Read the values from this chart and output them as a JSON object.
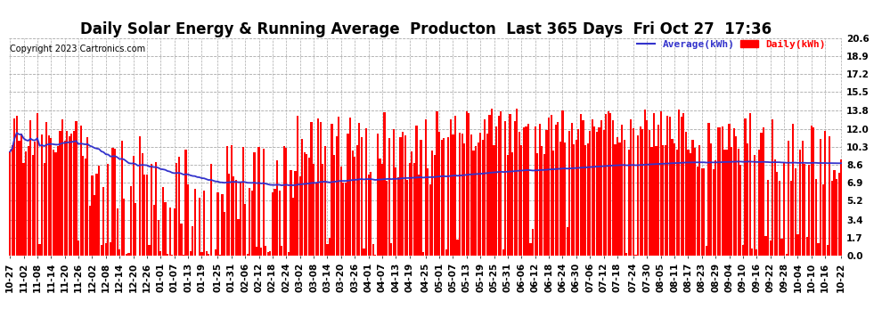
{
  "title": "Daily Solar Energy & Running Average  Producton  Last 365 Days  Fri Oct 27  17:36",
  "copyright_text": "Copyright 2023 Cartronics.com",
  "legend_average": "Average(kWh)",
  "legend_daily": "Daily(kWh)",
  "ylim": [
    0,
    20.6
  ],
  "yticks": [
    0.0,
    1.7,
    3.4,
    5.2,
    6.9,
    8.6,
    10.3,
    12.0,
    13.8,
    15.5,
    17.2,
    18.9,
    20.6
  ],
  "bar_color": "#ff0000",
  "avg_line_color": "#3333cc",
  "background_color": "#ffffff",
  "grid_color": "#aaaaaa",
  "title_fontsize": 12,
  "axis_fontsize": 7.5,
  "copyright_fontsize": 7
}
